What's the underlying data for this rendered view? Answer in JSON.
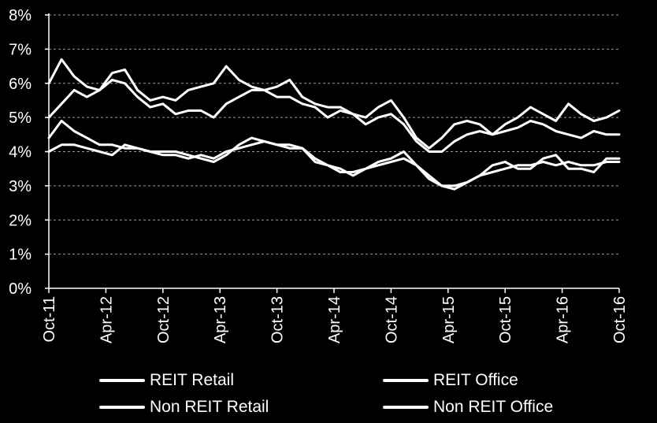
{
  "colors": {
    "background": "#000000",
    "foreground": "#ffffff",
    "grid": "#9a9a9a"
  },
  "chart_data": {
    "type": "line",
    "x_tick_labels": [
      "Oct-11",
      "Apr-12",
      "Oct-12",
      "Apr-13",
      "Oct-13",
      "Apr-14",
      "Oct-14",
      "Apr-15",
      "Oct-15",
      "Apr-16",
      "Oct-16"
    ],
    "y_tick_labels": [
      "0%",
      "1%",
      "2%",
      "3%",
      "4%",
      "5%",
      "6%",
      "7%",
      "8%"
    ],
    "ylim": [
      0,
      8
    ],
    "y_unit": "%",
    "grid": "horizontal dashed",
    "legend_placement": "bottom",
    "series": [
      {
        "name": "REIT Retail",
        "values": [
          4.0,
          4.2,
          4.2,
          4.1,
          4.0,
          3.9,
          4.2,
          4.1,
          4.0,
          3.9,
          3.9,
          3.8,
          3.9,
          3.8,
          4.0,
          4.1,
          4.2,
          4.3,
          4.2,
          4.1,
          4.1,
          3.7,
          3.6,
          3.4,
          3.4,
          3.5,
          3.6,
          3.7,
          3.8,
          3.6,
          3.3,
          3.0,
          2.9,
          3.1,
          3.3,
          3.4,
          3.5,
          3.6,
          3.6,
          3.7,
          3.6,
          3.7,
          3.6,
          3.6,
          3.7,
          3.7
        ]
      },
      {
        "name": "REIT Office",
        "values": [
          5.0,
          5.4,
          5.8,
          5.6,
          5.8,
          6.1,
          6.0,
          5.6,
          5.3,
          5.4,
          5.1,
          5.2,
          5.2,
          5.0,
          5.4,
          5.6,
          5.8,
          5.8,
          5.6,
          5.6,
          5.4,
          5.3,
          5.0,
          5.2,
          5.1,
          4.8,
          5.0,
          5.1,
          4.8,
          4.3,
          4.0,
          4.0,
          4.3,
          4.5,
          4.6,
          4.5,
          4.6,
          4.7,
          4.9,
          4.8,
          4.6,
          4.5,
          4.4,
          4.6,
          4.5,
          4.5
        ]
      },
      {
        "name": "Non REIT Retail",
        "values": [
          4.4,
          4.9,
          4.6,
          4.4,
          4.2,
          4.2,
          4.1,
          4.1,
          4.0,
          4.0,
          4.0,
          3.9,
          3.8,
          3.7,
          3.9,
          4.2,
          4.4,
          4.3,
          4.2,
          4.2,
          4.1,
          3.8,
          3.6,
          3.5,
          3.3,
          3.5,
          3.7,
          3.8,
          4.0,
          3.6,
          3.2,
          3.0,
          3.0,
          3.1,
          3.3,
          3.6,
          3.7,
          3.5,
          3.5,
          3.8,
          3.9,
          3.5,
          3.5,
          3.4,
          3.8,
          3.8
        ]
      },
      {
        "name": "Non REIT Office",
        "values": [
          6.0,
          6.7,
          6.2,
          5.9,
          5.8,
          6.3,
          6.4,
          5.8,
          5.5,
          5.6,
          5.5,
          5.8,
          5.9,
          6.0,
          6.5,
          6.1,
          5.9,
          5.8,
          5.9,
          6.1,
          5.6,
          5.4,
          5.3,
          5.3,
          5.1,
          5.0,
          5.3,
          5.5,
          5.0,
          4.4,
          4.1,
          4.4,
          4.8,
          4.9,
          4.8,
          4.5,
          4.8,
          5.0,
          5.3,
          5.1,
          4.9,
          5.4,
          5.1,
          4.9,
          5.0,
          5.2
        ]
      }
    ]
  }
}
